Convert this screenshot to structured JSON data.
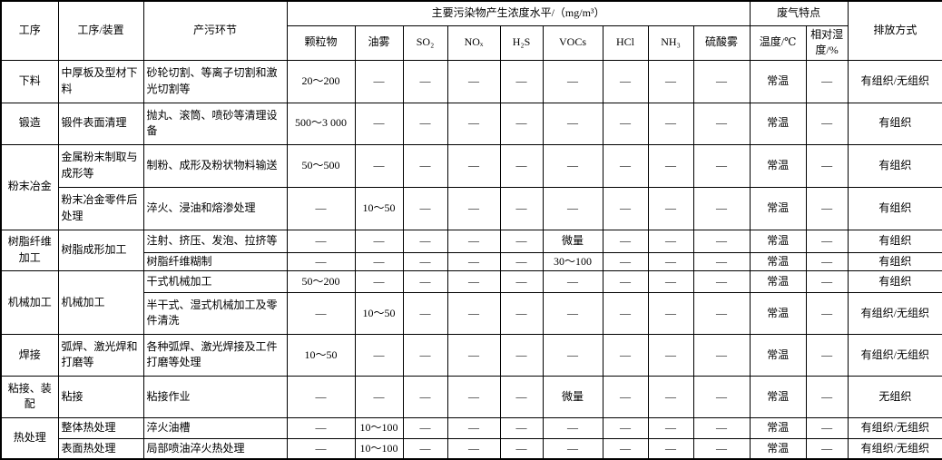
{
  "table": {
    "header": {
      "col_process": "工序",
      "col_device": "工序/装置",
      "col_step": "产污环节",
      "group_pollutants": "主要污染物产生浓度水平/（mg/m³）",
      "pollutant_cols": [
        "颗粒物",
        "油雾",
        "SO₂",
        "NOₓ",
        "H₂S",
        "VOCs",
        "HCl",
        "NH₃",
        "硫酸雾"
      ],
      "group_gas": "废气特点",
      "gas_cols": [
        "温度/℃",
        "相对湿度/%"
      ],
      "col_emission": "排放方式"
    },
    "rows": [
      {
        "process": "下料",
        "process_rowspan": 1,
        "device": "中厚板及型材下料",
        "device_rowspan": 1,
        "step": "砂轮切割、等离子切割和激光切割等",
        "values": [
          "20～200",
          "—",
          "—",
          "—",
          "—",
          "—",
          "—",
          "—",
          "—"
        ],
        "temp": "常温",
        "humidity": "—",
        "emission": "有组织/无组织"
      },
      {
        "process": "锻造",
        "process_rowspan": 1,
        "device": "锻件表面清理",
        "device_rowspan": 1,
        "step": "抛丸、滚筒、喷砂等清理设备",
        "values": [
          "500～3 000",
          "—",
          "—",
          "—",
          "—",
          "—",
          "—",
          "—",
          "—"
        ],
        "temp": "常温",
        "humidity": "—",
        "emission": "有组织"
      },
      {
        "process": "粉末冶金",
        "process_rowspan": 2,
        "device": "金属粉末制取与成形等",
        "device_rowspan": 1,
        "step": "制粉、成形及粉状物料输送",
        "values": [
          "50～500",
          "—",
          "—",
          "—",
          "—",
          "—",
          "—",
          "—",
          "—"
        ],
        "temp": "常温",
        "humidity": "—",
        "emission": "有组织"
      },
      {
        "device": "粉末冶金零件后处理",
        "device_rowspan": 1,
        "step": "淬火、浸油和熔渗处理",
        "values": [
          "—",
          "10～50",
          "—",
          "—",
          "—",
          "—",
          "—",
          "—",
          "—"
        ],
        "temp": "常温",
        "humidity": "—",
        "emission": "有组织"
      },
      {
        "process": "树脂纤维加工",
        "process_rowspan": 2,
        "device": "树脂成形加工",
        "device_rowspan": 2,
        "step": "注射、挤压、发泡、拉挤等",
        "values": [
          "—",
          "—",
          "—",
          "—",
          "—",
          "微量",
          "—",
          "—",
          "—"
        ],
        "temp": "常温",
        "humidity": "—",
        "emission": "有组织"
      },
      {
        "step": "树脂纤维糊制",
        "values": [
          "—",
          "—",
          "—",
          "—",
          "—",
          "30～100",
          "—",
          "—",
          "—"
        ],
        "temp": "常温",
        "humidity": "—",
        "emission": "有组织"
      },
      {
        "process": "机械加工",
        "process_rowspan": 2,
        "device": "机械加工",
        "device_rowspan": 2,
        "step": "干式机械加工",
        "values": [
          "50～200",
          "—",
          "—",
          "—",
          "—",
          "—",
          "—",
          "—",
          "—"
        ],
        "temp": "常温",
        "humidity": "—",
        "emission": "有组织"
      },
      {
        "step": "半干式、湿式机械加工及零件清洗",
        "values": [
          "—",
          "10～50",
          "—",
          "—",
          "—",
          "—",
          "—",
          "—",
          "—"
        ],
        "temp": "常温",
        "humidity": "—",
        "emission": "有组织/无组织"
      },
      {
        "process": "焊接",
        "process_rowspan": 1,
        "device": "弧焊、激光焊和打磨等",
        "device_rowspan": 1,
        "step": "各种弧焊、激光焊接及工件打磨等处理",
        "values": [
          "10～50",
          "—",
          "—",
          "—",
          "—",
          "—",
          "—",
          "—",
          "—"
        ],
        "temp": "常温",
        "humidity": "—",
        "emission": "有组织/无组织"
      },
      {
        "process": "粘接、装配",
        "process_rowspan": 1,
        "device": "粘接",
        "device_rowspan": 1,
        "step": "粘接作业",
        "values": [
          "—",
          "—",
          "—",
          "—",
          "—",
          "微量",
          "—",
          "—",
          "—"
        ],
        "temp": "常温",
        "humidity": "—",
        "emission": "无组织"
      },
      {
        "process": "热处理",
        "process_rowspan": 2,
        "device": "整体热处理",
        "device_rowspan": 1,
        "step": "淬火油槽",
        "values": [
          "—",
          "10～100",
          "—",
          "—",
          "—",
          "—",
          "—",
          "—",
          "—"
        ],
        "temp": "常温",
        "humidity": "—",
        "emission": "有组织/无组织"
      },
      {
        "device": "表面热处理",
        "device_rowspan": 1,
        "step": "局部喷油淬火热处理",
        "values": [
          "—",
          "10～100",
          "—",
          "—",
          "—",
          "—",
          "—",
          "—",
          "—"
        ],
        "temp": "常温",
        "humidity": "—",
        "emission": "有组织/无组织"
      }
    ]
  }
}
